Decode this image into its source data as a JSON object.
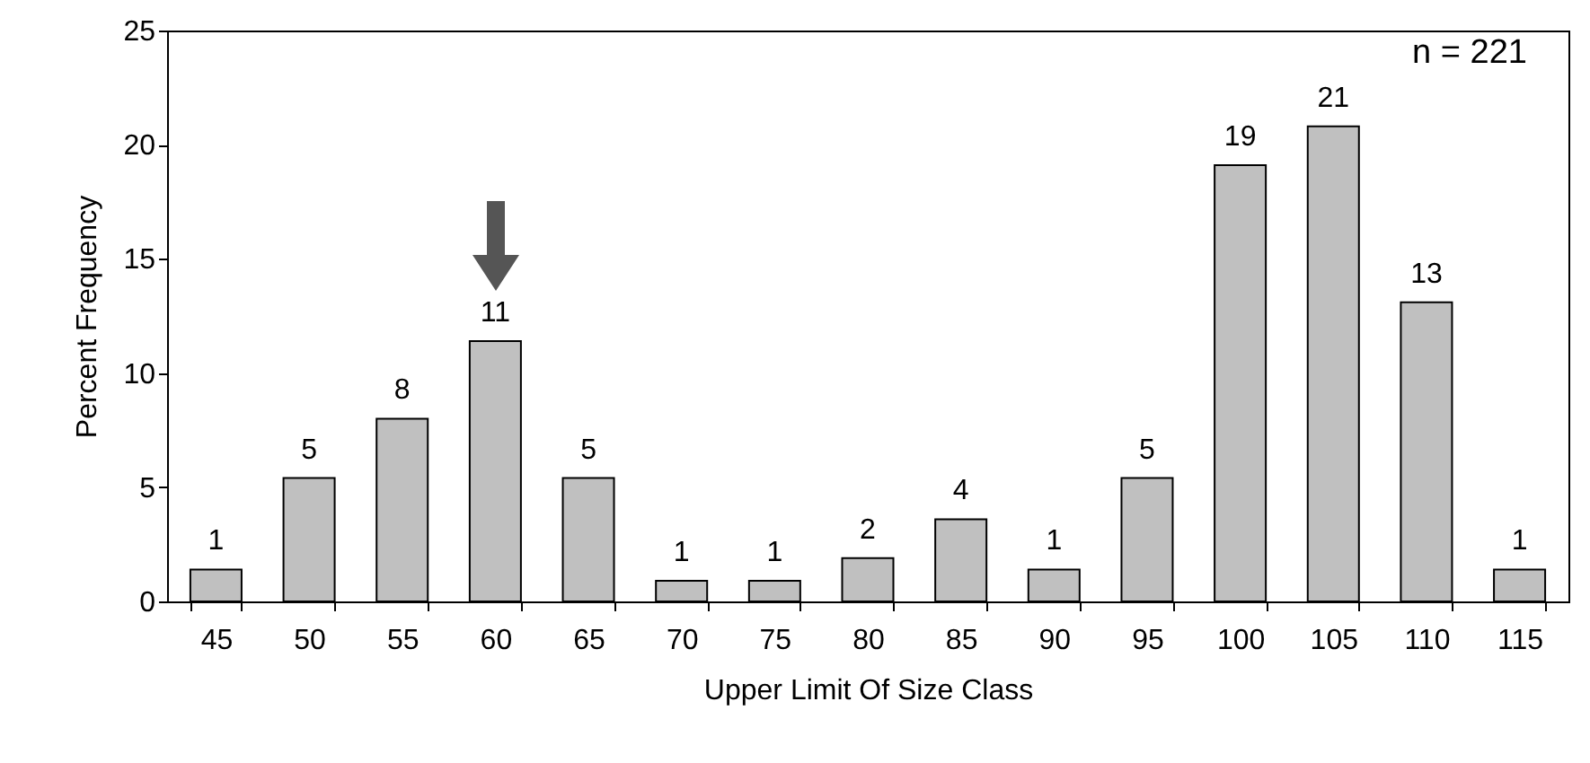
{
  "chart_data": {
    "type": "bar",
    "xlabel": "Upper Limit Of Size Class",
    "ylabel": "Percent Frequency",
    "categories": [
      "45",
      "50",
      "55",
      "60",
      "65",
      "70",
      "75",
      "80",
      "85",
      "90",
      "95",
      "100",
      "105",
      "110",
      "115"
    ],
    "values": [
      1.4,
      5.4,
      8.0,
      11.4,
      5.4,
      0.9,
      0.9,
      1.9,
      3.6,
      1.4,
      5.4,
      19.1,
      20.8,
      13.1,
      1.4
    ],
    "value_labels": [
      "1",
      "5",
      "8",
      "11",
      "5",
      "1",
      "1",
      "2",
      "4",
      "1",
      "5",
      "19",
      "21",
      "13",
      "1"
    ],
    "color": "#c0c0c0",
    "ylim": [
      0,
      25
    ],
    "yticks": [
      0,
      5,
      10,
      15,
      20,
      25
    ],
    "annotations": [
      "n = 221"
    ]
  }
}
